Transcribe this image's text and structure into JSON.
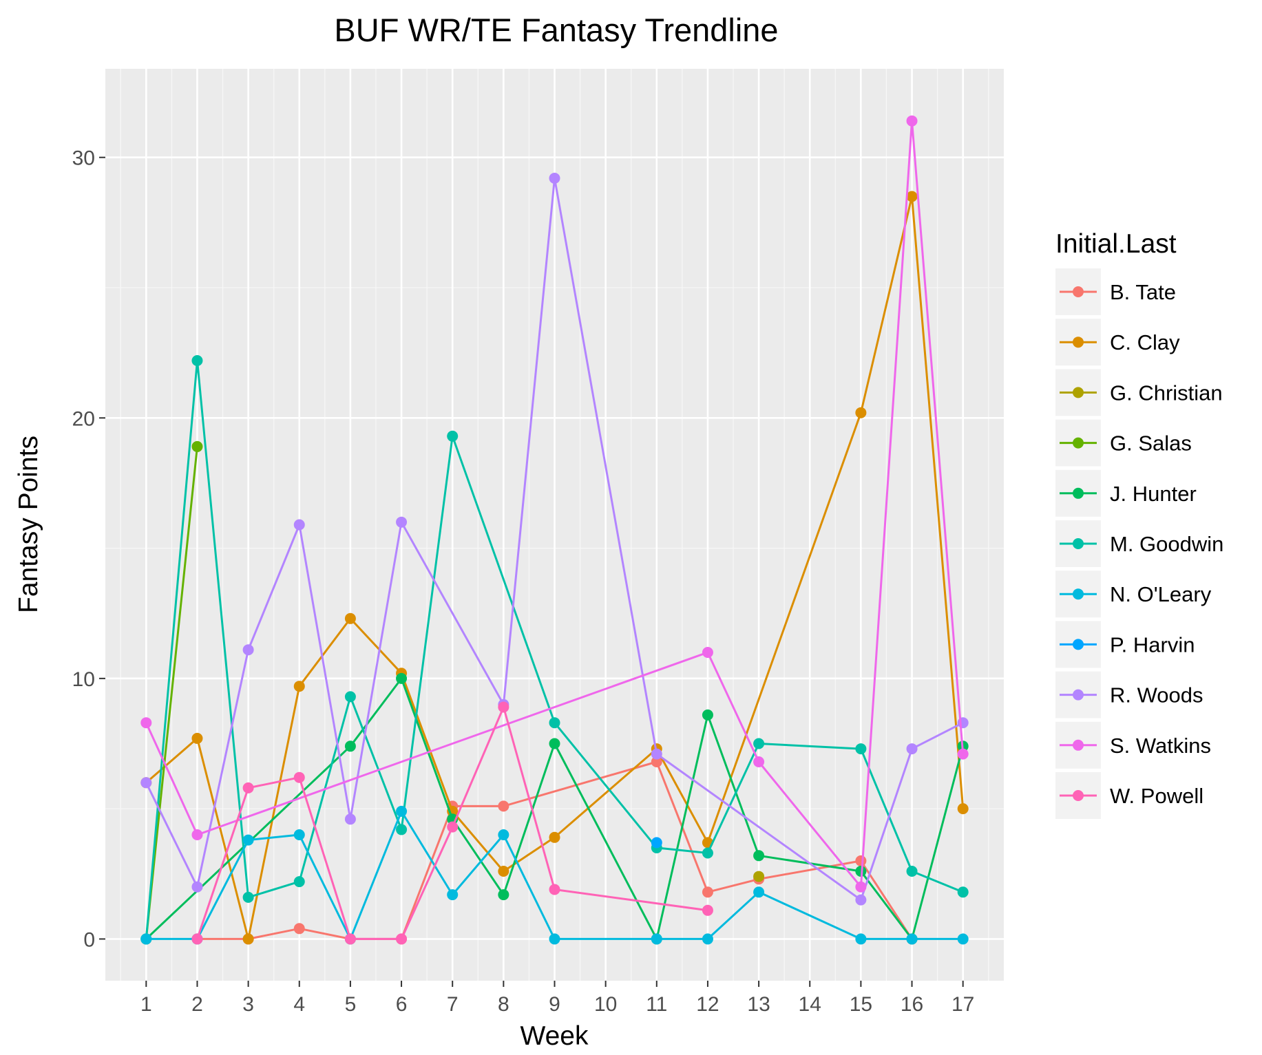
{
  "chart_data": {
    "type": "line",
    "title": "BUF WR/TE Fantasy Trendline",
    "xlabel": "Week",
    "ylabel": "Fantasy Points",
    "x_ticks": [
      1,
      2,
      3,
      4,
      5,
      6,
      7,
      8,
      9,
      10,
      11,
      12,
      13,
      14,
      15,
      16,
      17
    ],
    "y_ticks": [
      0,
      10,
      20,
      30
    ],
    "xlim": [
      0.2,
      17.8
    ],
    "ylim": [
      -1.6,
      33.4
    ],
    "grid": true,
    "legend": {
      "title": "Initial.Last",
      "position": "right"
    },
    "series": [
      {
        "name": "B. Tate",
        "color": "#F8766D",
        "points": [
          [
            2,
            0
          ],
          [
            3,
            0
          ],
          [
            4,
            0.4
          ],
          [
            5,
            0
          ],
          [
            6,
            0
          ],
          [
            7,
            5.1
          ],
          [
            8,
            5.1
          ],
          [
            11,
            6.8
          ],
          [
            12,
            1.8
          ],
          [
            13,
            2.3
          ],
          [
            15,
            3.0
          ],
          [
            16,
            0
          ]
        ]
      },
      {
        "name": "C. Clay",
        "color": "#DB8E00",
        "points": [
          [
            1,
            6.0
          ],
          [
            2,
            7.7
          ],
          [
            3,
            0
          ],
          [
            4,
            9.7
          ],
          [
            5,
            12.3
          ],
          [
            6,
            10.2
          ],
          [
            7,
            4.9
          ],
          [
            8,
            2.6
          ],
          [
            9,
            3.9
          ],
          [
            11,
            7.3
          ],
          [
            12,
            3.7
          ],
          [
            15,
            20.2
          ],
          [
            16,
            28.5
          ],
          [
            17,
            5.0
          ]
        ]
      },
      {
        "name": "G. Christian",
        "color": "#AEA200",
        "points": [
          [
            13,
            2.4
          ]
        ]
      },
      {
        "name": "G. Salas",
        "color": "#64B200",
        "points": [
          [
            1,
            0
          ],
          [
            2,
            18.9
          ]
        ]
      },
      {
        "name": "J. Hunter",
        "color": "#00BD5C",
        "points": [
          [
            1,
            0
          ],
          [
            5,
            7.4
          ],
          [
            6,
            10.0
          ],
          [
            7,
            4.6
          ],
          [
            8,
            1.7
          ],
          [
            9,
            7.5
          ],
          [
            11,
            0
          ],
          [
            12,
            8.6
          ],
          [
            13,
            3.2
          ],
          [
            15,
            2.6
          ],
          [
            16,
            0
          ],
          [
            17,
            7.4
          ]
        ]
      },
      {
        "name": "M. Goodwin",
        "color": "#00C1A7",
        "points": [
          [
            1,
            0
          ],
          [
            2,
            22.2
          ],
          [
            3,
            1.6
          ],
          [
            4,
            2.2
          ],
          [
            5,
            9.3
          ],
          [
            6,
            4.2
          ],
          [
            7,
            19.3
          ],
          [
            9,
            8.3
          ],
          [
            11,
            3.5
          ],
          [
            12,
            3.3
          ],
          [
            13,
            7.5
          ],
          [
            15,
            7.3
          ],
          [
            16,
            2.6
          ],
          [
            17,
            1.8
          ]
        ]
      },
      {
        "name": "N. O'Leary",
        "color": "#00BADE",
        "points": [
          [
            1,
            0
          ],
          [
            2,
            0
          ],
          [
            3,
            3.8
          ],
          [
            4,
            4.0
          ],
          [
            5,
            0
          ],
          [
            6,
            4.9
          ],
          [
            7,
            1.7
          ],
          [
            8,
            4.0
          ],
          [
            9,
            0
          ],
          [
            11,
            0
          ],
          [
            12,
            0
          ],
          [
            13,
            1.8
          ],
          [
            15,
            0
          ],
          [
            16,
            0
          ],
          [
            17,
            0
          ]
        ]
      },
      {
        "name": "P. Harvin",
        "color": "#00A6FF",
        "points": [
          [
            11,
            3.7
          ]
        ]
      },
      {
        "name": "R. Woods",
        "color": "#B385FF",
        "points": [
          [
            1,
            6.0
          ],
          [
            2,
            2.0
          ],
          [
            3,
            11.1
          ],
          [
            4,
            15.9
          ],
          [
            5,
            4.6
          ],
          [
            6,
            16.0
          ],
          [
            8,
            9.0
          ],
          [
            9,
            29.2
          ],
          [
            11,
            7.1
          ],
          [
            15,
            1.5
          ],
          [
            16,
            7.3
          ],
          [
            17,
            8.3
          ]
        ]
      },
      {
        "name": "S. Watkins",
        "color": "#EF67EB",
        "points": [
          [
            1,
            8.3
          ],
          [
            2,
            4.0
          ],
          [
            12,
            11.0
          ],
          [
            13,
            6.8
          ],
          [
            15,
            2.0
          ],
          [
            16,
            31.4
          ],
          [
            17,
            7.1
          ]
        ]
      },
      {
        "name": "W. Powell",
        "color": "#FF63B6",
        "points": [
          [
            2,
            0
          ],
          [
            3,
            5.8
          ],
          [
            4,
            6.2
          ],
          [
            5,
            0
          ],
          [
            6,
            0
          ],
          [
            7,
            4.3
          ],
          [
            8,
            8.9
          ],
          [
            9,
            1.9
          ],
          [
            12,
            1.1
          ]
        ]
      }
    ]
  }
}
